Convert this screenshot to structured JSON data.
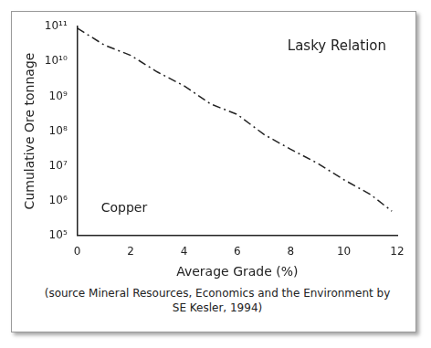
{
  "chart_data": {
    "type": "line",
    "title": "Lasky Relation",
    "annotation": "Copper",
    "source": "(source Mineral Resources, Economics and the Environment by SE Kesler, 1994)",
    "x_label": "Average Grade (%)",
    "y_label": "Cumulative Ore tonnage",
    "x": [
      0,
      1,
      2,
      3,
      4,
      5,
      6,
      7,
      8,
      9,
      10,
      11,
      11.8
    ],
    "values": [
      90000000000,
      30000000000,
      15000000000,
      5000000000,
      2000000000,
      600000000,
      300000000,
      80000000,
      30000000,
      12000000,
      4000000,
      1500000,
      500000
    ],
    "color": "#222222",
    "line_style": "dashdot",
    "marker": "none",
    "log": "y",
    "grid": false,
    "xlim": [
      0,
      12
    ],
    "xticks": [
      0,
      2,
      4,
      6,
      8,
      10,
      12
    ],
    "ylim": [
      100000,
      100000000000
    ],
    "yticks": [
      {
        "value": 100000,
        "label": "10⁵"
      },
      {
        "value": 1000000,
        "label": "10⁶"
      },
      {
        "value": 10000000,
        "label": "10⁷"
      },
      {
        "value": 100000000,
        "label": "10⁸"
      },
      {
        "value": 1000000000,
        "label": "10⁹"
      },
      {
        "value": 10000000000,
        "label": "10¹⁰"
      },
      {
        "value": 100000000000,
        "label": "10¹¹"
      }
    ]
  }
}
